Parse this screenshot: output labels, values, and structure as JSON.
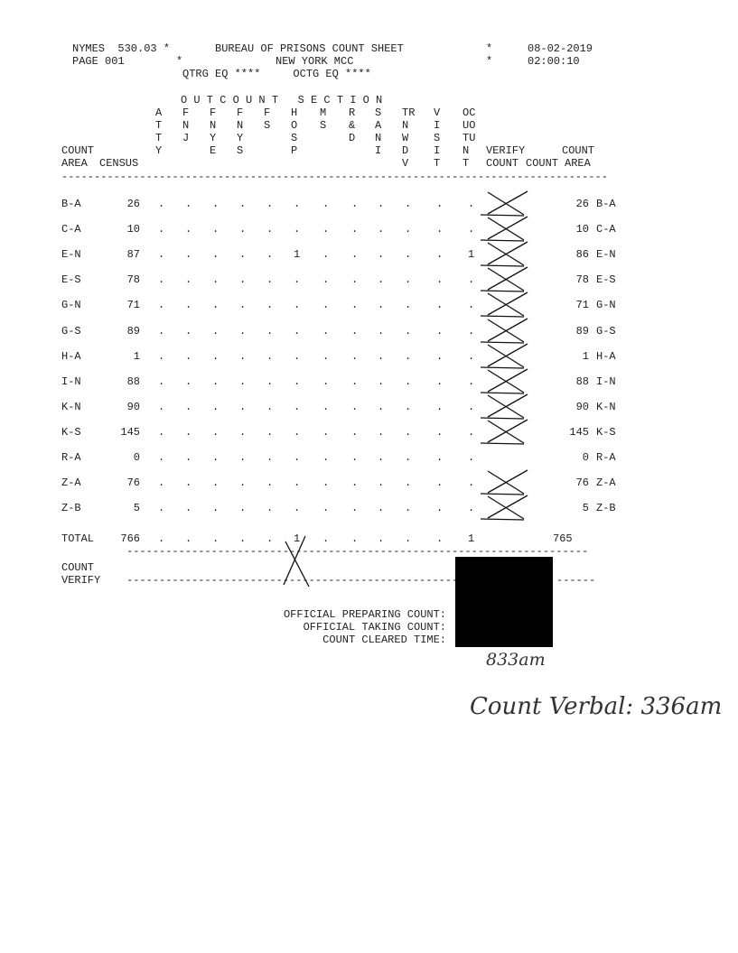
{
  "header": {
    "line1_left": "NYMES  530.03 *",
    "title": "BUREAU OF PRISONS COUNT SHEET",
    "star1": "*",
    "date": "08-02-2019",
    "line2_left": "PAGE 001",
    "star2": "*",
    "facility": "NEW YORK MCC",
    "star3": "*",
    "time": "02:00:10",
    "line3": "QTRG EQ ****     OCTG EQ ****"
  },
  "section_title": "O U T C O U N T   S E C T I O N",
  "columns": [
    "A\nT\nT\nY",
    "F\nN\nJ",
    "F\nN\nY\nE",
    "F\nN\nY\nS",
    "F\nS",
    "H\nO\nS\nP",
    "M\nS",
    "R\n&\nD",
    "S\nA\nN\nI",
    "TR\nN\nW\nD\nV",
    "V\nI\nS\nI\nT",
    "OC\nUO\nTU\nN\nT"
  ],
  "left_headers": {
    "count": "COUNT",
    "area": "AREA",
    "census": "CENSUS"
  },
  "right_headers": {
    "verify": "VERIFY",
    "verify_count": "COUNT",
    "count": "COUNT",
    "count2": "COUNT",
    "area": "AREA"
  },
  "rows": [
    {
      "area": "B-A",
      "census": "26",
      "cells": [
        ".",
        ".",
        ".",
        ".",
        ".",
        ".",
        ".",
        ".",
        ".",
        ".",
        ".",
        "."
      ],
      "count": "26",
      "area2": "B-A"
    },
    {
      "area": "C-A",
      "census": "10",
      "cells": [
        ".",
        ".",
        ".",
        ".",
        ".",
        ".",
        ".",
        ".",
        ".",
        ".",
        ".",
        "."
      ],
      "count": "10",
      "area2": "C-A"
    },
    {
      "area": "E-N",
      "census": "87",
      "cells": [
        ".",
        ".",
        ".",
        ".",
        ".",
        "1",
        ".",
        ".",
        ".",
        ".",
        ".",
        "1"
      ],
      "count": "86",
      "area2": "E-N"
    },
    {
      "area": "E-S",
      "census": "78",
      "cells": [
        ".",
        ".",
        ".",
        ".",
        ".",
        ".",
        ".",
        ".",
        ".",
        ".",
        ".",
        "."
      ],
      "count": "78",
      "area2": "E-S"
    },
    {
      "area": "G-N",
      "census": "71",
      "cells": [
        ".",
        ".",
        ".",
        ".",
        ".",
        ".",
        ".",
        ".",
        ".",
        ".",
        ".",
        "."
      ],
      "count": "71",
      "area2": "G-N"
    },
    {
      "area": "G-S",
      "census": "89",
      "cells": [
        ".",
        ".",
        ".",
        ".",
        ".",
        ".",
        ".",
        ".",
        ".",
        ".",
        ".",
        "."
      ],
      "count": "89",
      "area2": "G-S"
    },
    {
      "area": "H-A",
      "census": "1",
      "cells": [
        ".",
        ".",
        ".",
        ".",
        ".",
        ".",
        ".",
        ".",
        ".",
        ".",
        ".",
        "."
      ],
      "count": "1",
      "area2": "H-A"
    },
    {
      "area": "I-N",
      "census": "88",
      "cells": [
        ".",
        ".",
        ".",
        ".",
        ".",
        ".",
        ".",
        ".",
        ".",
        ".",
        ".",
        "."
      ],
      "count": "88",
      "area2": "I-N"
    },
    {
      "area": "K-N",
      "census": "90",
      "cells": [
        ".",
        ".",
        ".",
        ".",
        ".",
        ".",
        ".",
        ".",
        ".",
        ".",
        ".",
        "."
      ],
      "count": "90",
      "area2": "K-N"
    },
    {
      "area": "K-S",
      "census": "145",
      "cells": [
        ".",
        ".",
        ".",
        ".",
        ".",
        ".",
        ".",
        ".",
        ".",
        ".",
        ".",
        "."
      ],
      "count": "145",
      "area2": "K-S"
    },
    {
      "area": "R-A",
      "census": "0",
      "cells": [
        ".",
        ".",
        ".",
        ".",
        ".",
        ".",
        ".",
        ".",
        ".",
        ".",
        ".",
        "."
      ],
      "count": "0",
      "area2": "R-A"
    },
    {
      "area": "Z-A",
      "census": "76",
      "cells": [
        ".",
        ".",
        ".",
        ".",
        ".",
        ".",
        ".",
        ".",
        ".",
        ".",
        ".",
        "."
      ],
      "count": "76",
      "area2": "Z-A"
    },
    {
      "area": "Z-B",
      "census": "5",
      "cells": [
        ".",
        ".",
        ".",
        ".",
        ".",
        ".",
        ".",
        ".",
        ".",
        ".",
        ".",
        "."
      ],
      "count": "5",
      "area2": "Z-B"
    }
  ],
  "total": {
    "label": "TOTAL",
    "census": "766",
    "cells": [
      ".",
      ".",
      ".",
      ".",
      ".",
      "1",
      ".",
      ".",
      ".",
      ".",
      ".",
      "1"
    ],
    "count": "765"
  },
  "count_verify": {
    "line1": "COUNT",
    "line2": "VERIFY"
  },
  "officials": {
    "preparing": "OFFICIAL PREPARING COUNT:",
    "taking": "OFFICIAL TAKING COUNT:",
    "cleared": "COUNT CLEARED TIME:"
  },
  "handwriting": {
    "cleared_time": "833am",
    "note": "Count Verbal: 336am"
  }
}
